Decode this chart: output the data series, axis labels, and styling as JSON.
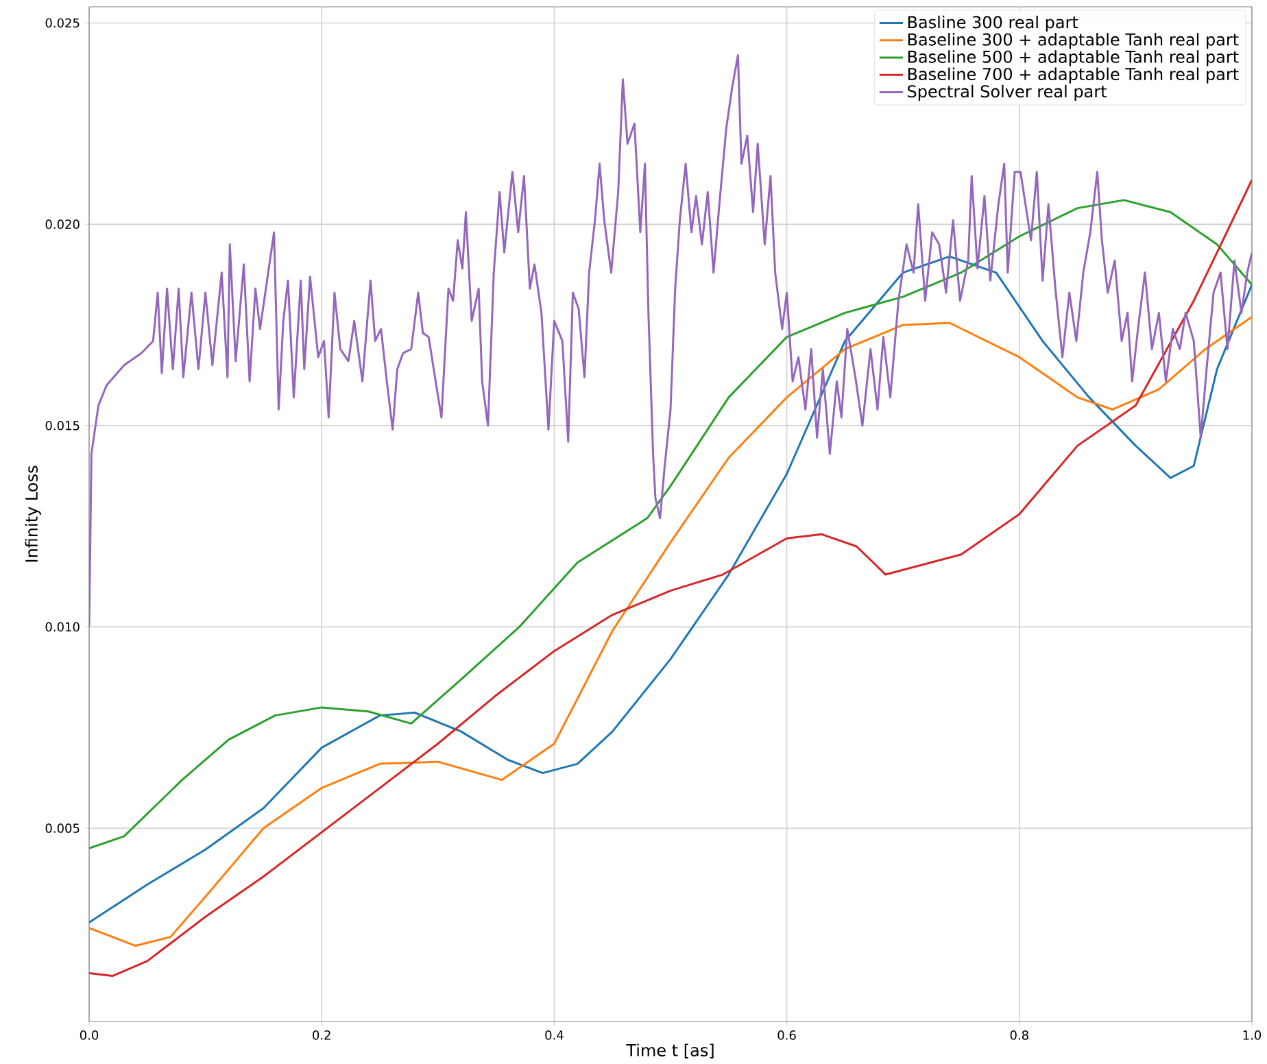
{
  "chart_data": {
    "type": "line",
    "xlabel": "Time t [as]",
    "ylabel": "Infinity Loss",
    "xlim": [
      0,
      1
    ],
    "ylim": [
      0.0002,
      0.0254
    ],
    "xticks": [
      {
        "value": 0,
        "label": "0.0"
      },
      {
        "value": 0.2,
        "label": "0.2"
      },
      {
        "value": 0.4,
        "label": "0.4"
      },
      {
        "value": 0.6,
        "label": "0.6"
      },
      {
        "value": 0.8,
        "label": "0.8"
      },
      {
        "value": 1,
        "label": "1.0"
      }
    ],
    "yticks": [
      {
        "value": 0.005,
        "label": "0.005"
      },
      {
        "value": 0.01,
        "label": "0.010"
      },
      {
        "value": 0.015,
        "label": "0.015"
      },
      {
        "value": 0.02,
        "label": "0.020"
      },
      {
        "value": 0.025,
        "label": "0.025"
      }
    ],
    "grid": true,
    "legend": "top right",
    "line_style": "solid",
    "series": [
      {
        "name": "Basline 300 real part",
        "color": "#1f77b4",
        "x": [
          0,
          0.05,
          0.1,
          0.15,
          0.2,
          0.25,
          0.28,
          0.32,
          0.36,
          0.39,
          0.42,
          0.45,
          0.5,
          0.55,
          0.6,
          0.65,
          0.7,
          0.74,
          0.78,
          0.82,
          0.86,
          0.9,
          0.93,
          0.95,
          0.97,
          1.0
        ],
        "values": [
          0.00266,
          0.0036,
          0.00447,
          0.0055,
          0.007,
          0.0078,
          0.00787,
          0.0074,
          0.0067,
          0.00637,
          0.0066,
          0.0074,
          0.0092,
          0.0113,
          0.0138,
          0.0171,
          0.0188,
          0.0192,
          0.0188,
          0.0171,
          0.0157,
          0.0145,
          0.0137,
          0.014,
          0.0164,
          0.0185
        ]
      },
      {
        "name": "Baseline 300 + adaptable Tanh real part",
        "color": "#ff7f0e",
        "x": [
          0,
          0.04,
          0.07,
          0.1,
          0.15,
          0.2,
          0.25,
          0.3,
          0.355,
          0.4,
          0.45,
          0.5,
          0.55,
          0.6,
          0.65,
          0.7,
          0.74,
          0.8,
          0.85,
          0.88,
          0.92,
          0.96,
          1.0
        ],
        "values": [
          0.00252,
          0.00208,
          0.0023,
          0.0033,
          0.005,
          0.006,
          0.0066,
          0.00665,
          0.0062,
          0.0071,
          0.0099,
          0.0121,
          0.0142,
          0.0157,
          0.0169,
          0.0175,
          0.01755,
          0.0167,
          0.0157,
          0.0154,
          0.0159,
          0.0169,
          0.0177
        ]
      },
      {
        "name": "Baseline 500 + adaptable Tanh real part",
        "color": "#2ca02c",
        "x": [
          0,
          0.03,
          0.08,
          0.12,
          0.16,
          0.2,
          0.24,
          0.277,
          0.32,
          0.37,
          0.42,
          0.48,
          0.5,
          0.55,
          0.6,
          0.65,
          0.7,
          0.75,
          0.8,
          0.85,
          0.89,
          0.93,
          0.97,
          1.0
        ],
        "values": [
          0.0045,
          0.0048,
          0.0062,
          0.0072,
          0.0078,
          0.008,
          0.0079,
          0.0076,
          0.0087,
          0.01,
          0.0116,
          0.0127,
          0.0135,
          0.0157,
          0.0172,
          0.0178,
          0.0182,
          0.0188,
          0.0197,
          0.0204,
          0.0206,
          0.0203,
          0.0195,
          0.0185
        ]
      },
      {
        "name": "Baseline 700 + adaptable Tanh real part",
        "color": "#d62728",
        "x": [
          0,
          0.02,
          0.05,
          0.1,
          0.15,
          0.2,
          0.25,
          0.3,
          0.35,
          0.4,
          0.45,
          0.5,
          0.545,
          0.6,
          0.63,
          0.66,
          0.685,
          0.75,
          0.8,
          0.85,
          0.9,
          0.95,
          1.0
        ],
        "values": [
          0.0014,
          0.00133,
          0.0017,
          0.0028,
          0.0038,
          0.0049,
          0.006,
          0.0071,
          0.0083,
          0.0094,
          0.0103,
          0.0109,
          0.0113,
          0.0122,
          0.0123,
          0.012,
          0.0113,
          0.0118,
          0.0128,
          0.0145,
          0.0155,
          0.0181,
          0.0211
        ]
      },
      {
        "name": "Spectral Solver real part",
        "color": "#9467bd",
        "x": [
          0,
          0.002,
          0.008,
          0.015,
          0.03,
          0.045,
          0.055,
          0.059,
          0.0625,
          0.067,
          0.072,
          0.077,
          0.081,
          0.088,
          0.094,
          0.1,
          0.106,
          0.114,
          0.119,
          0.121,
          0.126,
          0.133,
          0.138,
          0.143,
          0.147,
          0.159,
          0.163,
          0.167,
          0.171,
          0.176,
          0.182,
          0.185,
          0.19,
          0.197,
          0.202,
          0.206,
          0.211,
          0.216,
          0.223,
          0.228,
          0.235,
          0.242,
          0.246,
          0.251,
          0.256,
          0.261,
          0.265,
          0.27,
          0.277,
          0.283,
          0.287,
          0.292,
          0.298,
          0.303,
          0.309,
          0.313,
          0.317,
          0.321,
          0.324,
          0.329,
          0.335,
          0.338,
          0.343,
          0.348,
          0.353,
          0.357,
          0.364,
          0.369,
          0.374,
          0.379,
          0.383,
          0.389,
          0.395,
          0.4,
          0.407,
          0.412,
          0.416,
          0.421,
          0.426,
          0.43,
          0.435,
          0.439,
          0.443,
          0.449,
          0.455,
          0.459,
          0.463,
          0.469,
          0.474,
          0.478,
          0.481,
          0.485,
          0.487,
          0.491,
          0.495,
          0.5,
          0.504,
          0.508,
          0.513,
          0.518,
          0.522,
          0.527,
          0.532,
          0.537,
          0.542,
          0.548,
          0.553,
          0.558,
          0.561,
          0.566,
          0.571,
          0.575,
          0.581,
          0.586,
          0.59,
          0.596,
          0.6,
          0.605,
          0.61,
          0.616,
          0.621,
          0.626,
          0.631,
          0.637,
          0.643,
          0.647,
          0.652,
          0.659,
          0.665,
          0.672,
          0.678,
          0.683,
          0.689,
          0.696,
          0.703,
          0.709,
          0.713,
          0.719,
          0.725,
          0.731,
          0.737,
          0.743,
          0.749,
          0.756,
          0.759,
          0.764,
          0.77,
          0.775,
          0.782,
          0.787,
          0.79,
          0.796,
          0.801,
          0.81,
          0.815,
          0.82,
          0.825,
          0.831,
          0.837,
          0.843,
          0.849,
          0.855,
          0.861,
          0.867,
          0.871,
          0.876,
          0.882,
          0.888,
          0.893,
          0.897,
          0.902,
          0.908,
          0.914,
          0.92,
          0.926,
          0.932,
          0.938,
          0.943,
          0.95,
          0.956,
          0.961,
          0.967,
          0.973,
          0.979,
          0.985,
          0.991,
          0.996,
          1.0
        ],
        "values": [
          0.01,
          0.0143,
          0.0155,
          0.016,
          0.0165,
          0.0168,
          0.0171,
          0.0183,
          0.0163,
          0.0184,
          0.0164,
          0.0184,
          0.0162,
          0.0183,
          0.0164,
          0.0183,
          0.0165,
          0.0188,
          0.0162,
          0.0195,
          0.0166,
          0.019,
          0.0161,
          0.0184,
          0.0174,
          0.0198,
          0.0154,
          0.0176,
          0.0186,
          0.0157,
          0.0186,
          0.0164,
          0.0187,
          0.0167,
          0.0171,
          0.0152,
          0.0183,
          0.0169,
          0.0166,
          0.0176,
          0.0161,
          0.0186,
          0.0171,
          0.0174,
          0.0161,
          0.0149,
          0.0164,
          0.0168,
          0.0169,
          0.0183,
          0.0173,
          0.0172,
          0.0161,
          0.0152,
          0.0184,
          0.0181,
          0.0196,
          0.0189,
          0.0203,
          0.0176,
          0.0184,
          0.0161,
          0.015,
          0.0188,
          0.0208,
          0.0193,
          0.0213,
          0.0198,
          0.0212,
          0.0184,
          0.019,
          0.0178,
          0.0149,
          0.0176,
          0.0171,
          0.0146,
          0.0183,
          0.0179,
          0.0162,
          0.0188,
          0.0201,
          0.0215,
          0.0201,
          0.0188,
          0.0208,
          0.0236,
          0.022,
          0.0225,
          0.0198,
          0.0215,
          0.0178,
          0.0143,
          0.0132,
          0.0127,
          0.014,
          0.0154,
          0.0184,
          0.0201,
          0.0215,
          0.0198,
          0.0207,
          0.0195,
          0.0208,
          0.0188,
          0.0205,
          0.0224,
          0.0234,
          0.0242,
          0.0215,
          0.0222,
          0.0203,
          0.022,
          0.0195,
          0.0212,
          0.0188,
          0.0174,
          0.0183,
          0.0161,
          0.0167,
          0.0154,
          0.0169,
          0.0147,
          0.0164,
          0.0143,
          0.0161,
          0.0152,
          0.0174,
          0.0162,
          0.015,
          0.0169,
          0.0154,
          0.0172,
          0.0157,
          0.0181,
          0.0195,
          0.0188,
          0.0205,
          0.0181,
          0.0198,
          0.0195,
          0.0183,
          0.0201,
          0.0181,
          0.0191,
          0.0212,
          0.0189,
          0.0207,
          0.0186,
          0.0205,
          0.0215,
          0.0188,
          0.0213,
          0.0213,
          0.0196,
          0.0213,
          0.0186,
          0.0205,
          0.0184,
          0.0167,
          0.0183,
          0.0171,
          0.0188,
          0.0198,
          0.0213,
          0.0196,
          0.0183,
          0.0191,
          0.0171,
          0.0178,
          0.0161,
          0.0174,
          0.0188,
          0.0169,
          0.0178,
          0.0161,
          0.0174,
          0.0169,
          0.0178,
          0.0171,
          0.0147,
          0.0164,
          0.0183,
          0.0188,
          0.0169,
          0.0191,
          0.0178,
          0.0188,
          0.0193
        ]
      }
    ]
  }
}
